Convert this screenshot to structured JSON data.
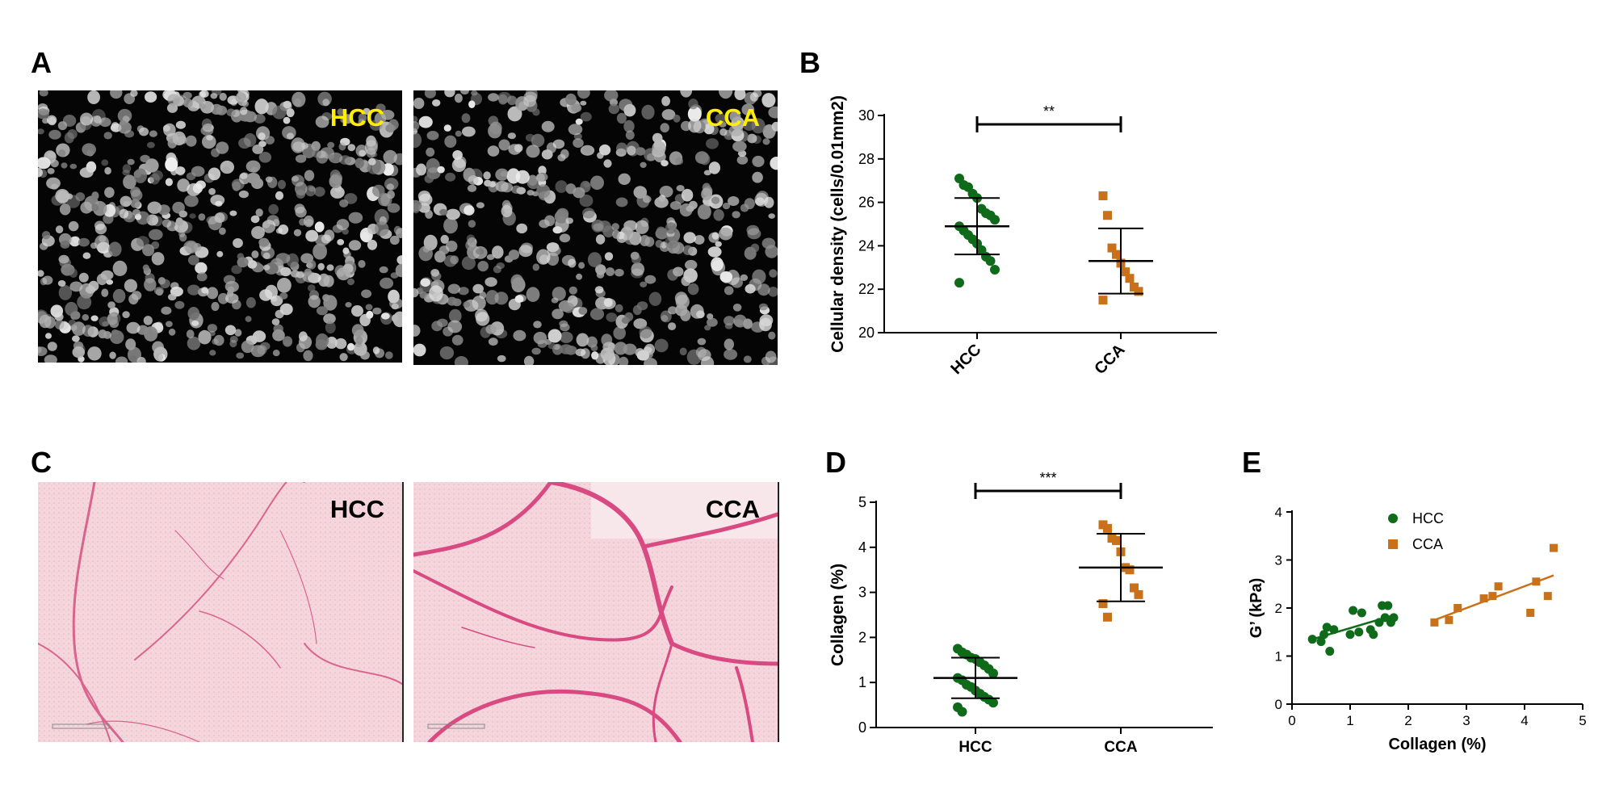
{
  "panels": {
    "A": {
      "letter": "A",
      "left_label": "HCC",
      "right_label": "CCA"
    },
    "B": {
      "letter": "B"
    },
    "C": {
      "letter": "C",
      "left_label": "HCC",
      "right_label": "CCA"
    },
    "D": {
      "letter": "D"
    },
    "E": {
      "letter": "E"
    }
  },
  "colors": {
    "hcc": "#0f6b1a",
    "cca": "#c8711a",
    "nuclei_bg": "#050505",
    "tissue_bg": "#f4d5dc",
    "fiber": "#d94a82",
    "label_yellow": "#ffee00"
  },
  "chart_data": [
    {
      "type": "scatter",
      "panel": "B",
      "ylabel": "Cellular density (cells/0.01mm2)",
      "categories": [
        "HCC",
        "CCA"
      ],
      "ylim": [
        20,
        30
      ],
      "yticks": [
        20,
        22,
        24,
        26,
        28,
        30
      ],
      "significance": "**",
      "series": [
        {
          "name": "HCC",
          "mean": 24.9,
          "sd_low": 23.6,
          "sd_high": 26.2,
          "values": [
            27.1,
            26.8,
            26.7,
            26.4,
            26.2,
            25.7,
            25.5,
            25.4,
            25.2,
            24.9,
            24.7,
            24.5,
            24.3,
            24.1,
            23.8,
            23.5,
            23.3,
            22.9,
            22.3
          ]
        },
        {
          "name": "CCA",
          "mean": 23.3,
          "sd_low": 21.8,
          "sd_high": 24.8,
          "values": [
            26.3,
            25.4,
            23.9,
            23.6,
            23.2,
            22.8,
            22.5,
            22.1,
            21.9,
            21.5
          ]
        }
      ]
    },
    {
      "type": "scatter",
      "panel": "D",
      "ylabel": "Collagen (%)",
      "categories": [
        "HCC",
        "CCA"
      ],
      "ylim": [
        0,
        5
      ],
      "yticks": [
        0,
        1,
        2,
        3,
        4,
        5
      ],
      "significance": "***",
      "series": [
        {
          "name": "HCC",
          "mean": 1.1,
          "sd_low": 0.65,
          "sd_high": 1.55,
          "values": [
            1.75,
            1.67,
            1.62,
            1.55,
            1.52,
            1.45,
            1.38,
            1.3,
            1.2,
            1.1,
            1.05,
            0.95,
            0.9,
            0.82,
            0.75,
            0.68,
            0.62,
            0.55,
            0.45,
            0.35
          ]
        },
        {
          "name": "CCA",
          "mean": 3.55,
          "sd_low": 2.8,
          "sd_high": 4.3,
          "values": [
            4.5,
            4.42,
            4.2,
            4.15,
            3.9,
            3.55,
            3.5,
            3.1,
            2.95,
            2.75,
            2.45
          ]
        }
      ]
    },
    {
      "type": "scatter",
      "panel": "E",
      "xlabel": "Collagen (%)",
      "ylabel": "G’ (kPa)",
      "xlim": [
        0,
        5
      ],
      "ylim": [
        0,
        4
      ],
      "xticks": [
        0,
        1,
        2,
        3,
        4,
        5
      ],
      "yticks": [
        0,
        1,
        2,
        3,
        4
      ],
      "legend_position": "top-left",
      "series": [
        {
          "name": "HCC",
          "marker": "circle",
          "points": [
            [
              0.35,
              1.35
            ],
            [
              0.5,
              1.3
            ],
            [
              0.55,
              1.45
            ],
            [
              0.6,
              1.6
            ],
            [
              0.65,
              1.1
            ],
            [
              0.72,
              1.55
            ],
            [
              1.0,
              1.45
            ],
            [
              1.05,
              1.95
            ],
            [
              1.15,
              1.5
            ],
            [
              1.2,
              1.9
            ],
            [
              1.35,
              1.55
            ],
            [
              1.4,
              1.45
            ],
            [
              1.5,
              1.7
            ],
            [
              1.55,
              2.05
            ],
            [
              1.6,
              1.8
            ],
            [
              1.65,
              2.05
            ],
            [
              1.7,
              1.7
            ],
            [
              1.75,
              1.8
            ]
          ],
          "fit": [
            [
              0.35,
              1.35
            ],
            [
              1.75,
              1.85
            ]
          ]
        },
        {
          "name": "CCA",
          "marker": "square",
          "points": [
            [
              2.45,
              1.7
            ],
            [
              2.7,
              1.75
            ],
            [
              2.85,
              2.0
            ],
            [
              3.3,
              2.2
            ],
            [
              3.45,
              2.25
            ],
            [
              3.55,
              2.45
            ],
            [
              4.1,
              1.9
            ],
            [
              4.2,
              2.55
            ],
            [
              4.4,
              2.25
            ],
            [
              4.5,
              3.25
            ]
          ],
          "fit": [
            [
              2.45,
              1.75
            ],
            [
              4.5,
              2.68
            ]
          ]
        }
      ]
    }
  ]
}
